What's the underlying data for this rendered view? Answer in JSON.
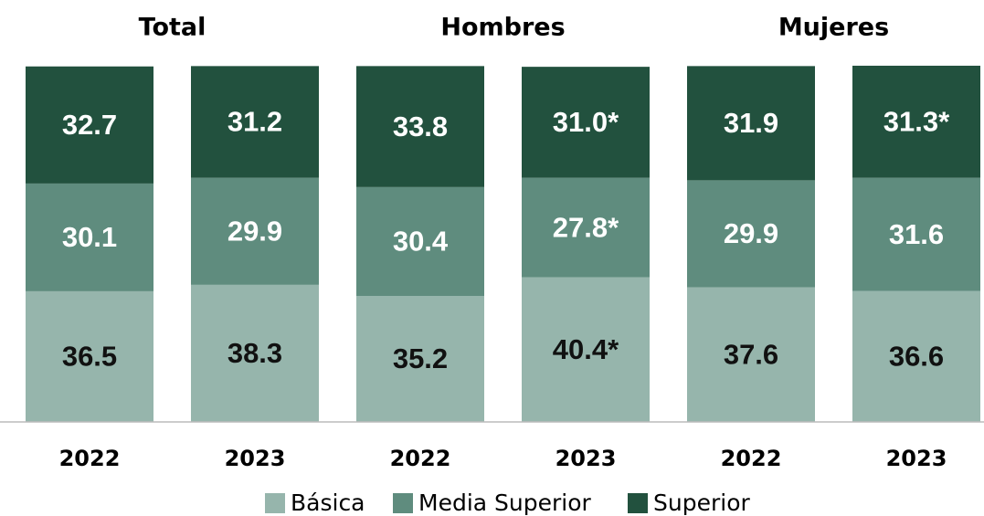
{
  "chart_data": {
    "type": "stacked_bar",
    "groups": [
      "Total",
      "Hombres",
      "Mujeres"
    ],
    "categories": [
      "2022",
      "2023",
      "2022",
      "2023",
      "2022",
      "2023"
    ],
    "ylim": [
      0,
      100
    ],
    "series": [
      {
        "name": "Básica",
        "color": "#96b5ac",
        "label_color": "#111111",
        "values": [
          36.5,
          38.3,
          35.2,
          40.4,
          37.6,
          36.6
        ],
        "value_labels": [
          "36.5",
          "38.3",
          "35.2",
          "40.4*",
          "37.6",
          "36.6"
        ]
      },
      {
        "name": "Media Superior",
        "color": "#5f8c7e",
        "label_color": "#ffffff",
        "values": [
          30.1,
          29.9,
          30.4,
          27.8,
          29.9,
          31.6
        ],
        "value_labels": [
          "30.1",
          "29.9",
          "30.4",
          "27.8*",
          "29.9",
          "31.6"
        ]
      },
      {
        "name": "Superior",
        "color": "#22513e",
        "label_color": "#ffffff",
        "values": [
          32.7,
          31.2,
          33.8,
          31.0,
          31.9,
          31.3
        ],
        "value_labels": [
          "32.7",
          "31.2",
          "33.8",
          "31.0*",
          "31.9",
          "31.3*"
        ]
      }
    ]
  }
}
